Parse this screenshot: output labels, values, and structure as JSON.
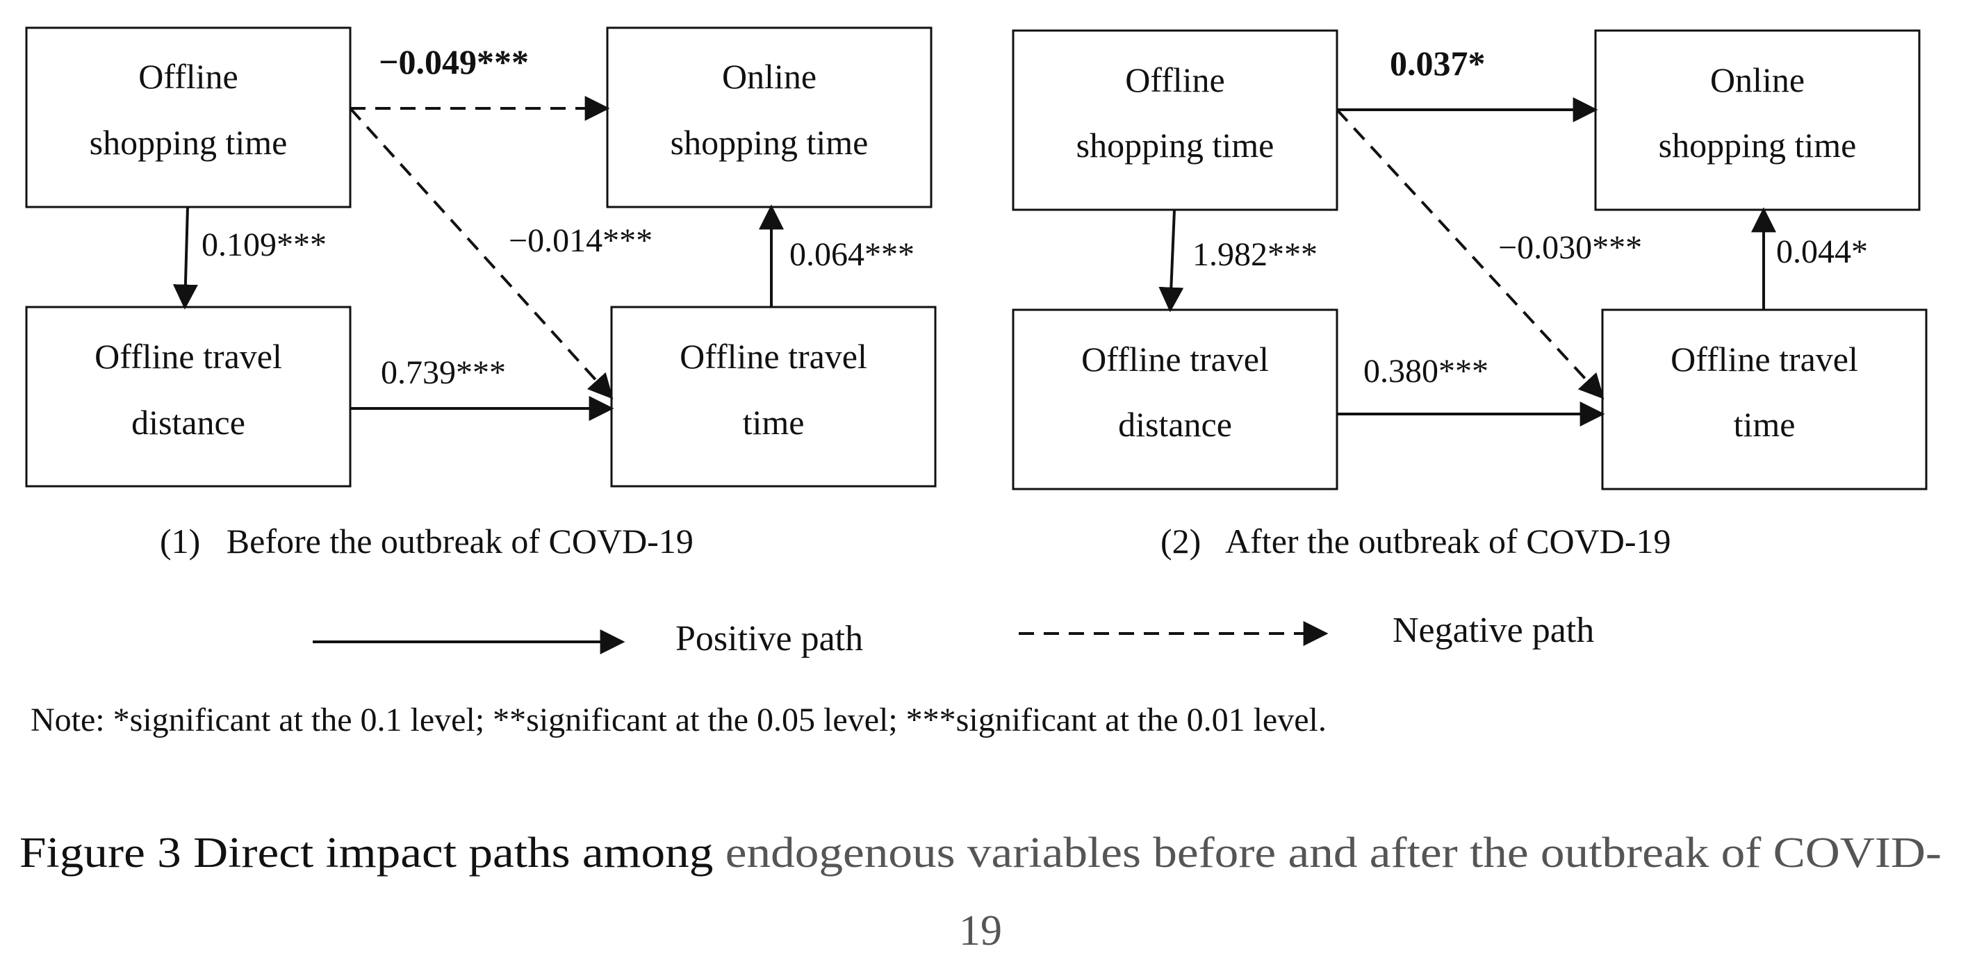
{
  "panels": [
    {
      "caption": "(1)   Before the outbreak of COVD-19",
      "boxes": {
        "offline_shopping": [
          "Offline",
          "shopping time"
        ],
        "online_shopping": [
          "Online",
          "shopping time"
        ],
        "travel_distance": [
          "Offline travel",
          "distance"
        ],
        "travel_time": [
          "Offline travel",
          "time"
        ]
      },
      "paths": {
        "offline_to_online": "−0.049***",
        "offline_to_distance": "0.109***",
        "offline_to_traveltime": "−0.014***",
        "traveltime_to_online": "0.064***",
        "distance_to_traveltime": "0.739***"
      }
    },
    {
      "caption": "(2)   After the outbreak of COVD-19",
      "boxes": {
        "offline_shopping": [
          "Offline",
          "shopping time"
        ],
        "online_shopping": [
          "Online",
          "shopping time"
        ],
        "travel_distance": [
          "Offline travel",
          "distance"
        ],
        "travel_time": [
          "Offline travel",
          "time"
        ]
      },
      "paths": {
        "offline_to_online": "0.037*",
        "offline_to_distance": "1.982***",
        "offline_to_traveltime": "−0.030***",
        "traveltime_to_online": "0.044*",
        "distance_to_traveltime": "0.380***"
      }
    }
  ],
  "legend": {
    "positive": "Positive path",
    "negative": "Negative path"
  },
  "note": "Note: *significant at the 0.1 level; **significant at the 0.05 level; ***significant at the 0.01 level.",
  "figure_caption": {
    "part1": "Figure 3 Direct impact paths among ",
    "part2": "endogenous variables before and after the outbreak of COVID-",
    "line2": "19"
  }
}
